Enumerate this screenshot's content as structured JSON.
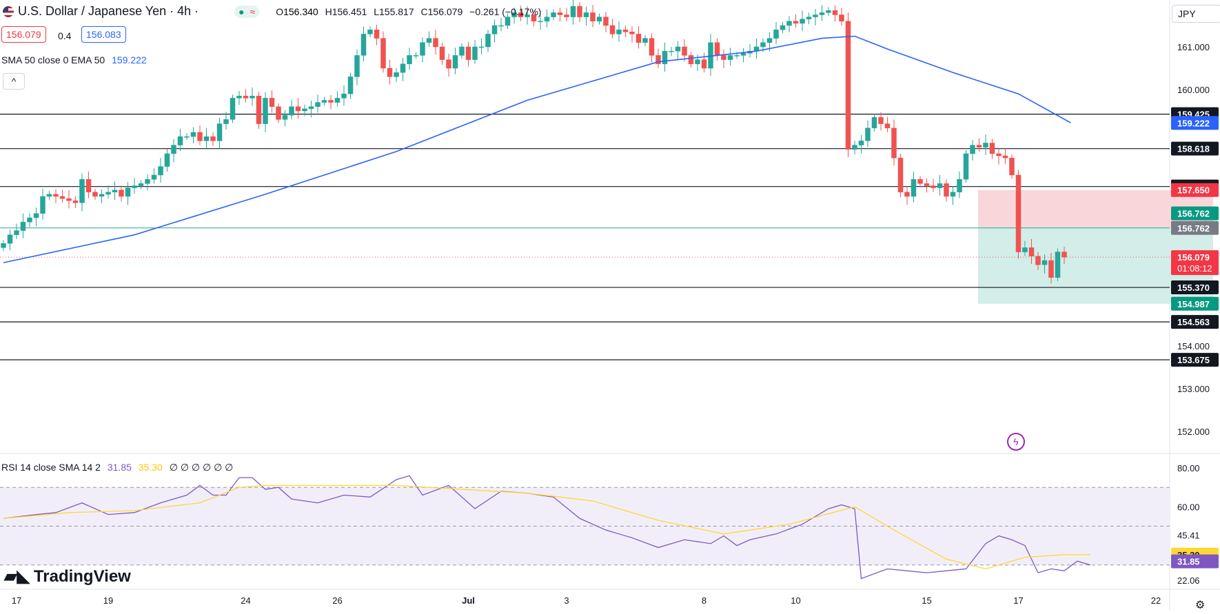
{
  "header": {
    "symbol": "U.S. Dollar / Japanese Yen · 4h ·",
    "ohlc": {
      "o_label": "O",
      "o": "156.340",
      "h_label": "H",
      "h": "156.451",
      "l_label": "L",
      "l": "155.817",
      "c_label": "C",
      "c": "156.079",
      "change": "−0.261 (−0.17%)"
    },
    "bid": "156.079",
    "spread": "0.4",
    "ask": "156.083",
    "indicator": "SMA 50 close 0 EMA 50",
    "indicator_value": "159.222",
    "currency": "JPY",
    "collapse_icon": "chevron-up-icon",
    "flag_icon": "us-flag-icon"
  },
  "rsi_header": {
    "label": "RSI 14 close SMA 14 2",
    "rsi_value": "31.85",
    "sma_value": "35.30",
    "extra": "∅ ∅ ∅ ∅ ∅ ∅"
  },
  "branding": {
    "logo_text": "TradingView"
  },
  "colors": {
    "up": "#26a69a",
    "down": "#ef5350",
    "ma": "#2962ff",
    "rsi": "#7e57c2",
    "rsi_sma": "#fdd835",
    "risk_zone": "#f9d6d9",
    "reward_zone": "#d3ede8"
  },
  "chart_data": {
    "type": "candlestick",
    "symbol": "USDJPY",
    "timeframe": "4h",
    "y_axis": {
      "ticks": [
        152.0,
        153.0,
        154.0,
        160.0,
        161.0
      ],
      "tick_labels": [
        "152.000",
        "153.000",
        "154.000",
        "160.000",
        "161.000"
      ],
      "range": [
        151.5,
        162.0
      ]
    },
    "x_axis": {
      "ticks": [
        {
          "label": "17",
          "idx": 2
        },
        {
          "label": "19",
          "idx": 16
        },
        {
          "label": "24",
          "idx": 37
        },
        {
          "label": "26",
          "idx": 51
        },
        {
          "label": "Jul",
          "idx": 71
        },
        {
          "label": "3",
          "idx": 86
        },
        {
          "label": "8",
          "idx": 107
        },
        {
          "label": "10",
          "idx": 121
        },
        {
          "label": "15",
          "idx": 141
        },
        {
          "label": "17",
          "idx": 155
        },
        {
          "label": "22",
          "idx": 176
        }
      ],
      "total_slots": 188
    },
    "candles_close": [
      156.4,
      156.6,
      156.7,
      156.9,
      157.0,
      157.1,
      157.5,
      157.55,
      157.5,
      157.45,
      157.4,
      157.35,
      157.9,
      157.6,
      157.5,
      157.55,
      157.6,
      157.65,
      157.5,
      157.7,
      157.75,
      157.8,
      157.9,
      158.0,
      158.2,
      158.5,
      158.7,
      158.9,
      158.9,
      159.0,
      158.8,
      158.9,
      158.8,
      159.2,
      159.3,
      159.8,
      159.85,
      159.8,
      159.85,
      159.2,
      159.8,
      159.6,
      159.3,
      159.4,
      159.6,
      159.5,
      159.55,
      159.6,
      159.7,
      159.75,
      159.7,
      159.8,
      159.9,
      160.3,
      160.8,
      161.3,
      161.4,
      161.2,
      160.5,
      160.3,
      160.4,
      160.6,
      160.8,
      160.8,
      161.1,
      161.2,
      161.0,
      160.7,
      160.5,
      160.8,
      161.0,
      160.7,
      161.0,
      161.0,
      161.3,
      161.5,
      161.5,
      161.7,
      161.8,
      161.7,
      161.75,
      161.6,
      161.6,
      161.7,
      161.8,
      161.75,
      161.7,
      161.95,
      161.7,
      161.8,
      161.6,
      161.7,
      161.5,
      161.3,
      161.4,
      161.35,
      161.3,
      161.1,
      161.2,
      160.8,
      160.6,
      160.9,
      160.9,
      161.0,
      160.8,
      160.6,
      160.7,
      160.5,
      161.1,
      160.8,
      160.7,
      160.8,
      160.8,
      160.85,
      160.9,
      161.0,
      161.1,
      161.2,
      161.4,
      161.5,
      161.6,
      161.55,
      161.65,
      161.7,
      161.75,
      161.8,
      161.85,
      161.75,
      161.6,
      158.6,
      158.7,
      158.8,
      159.1,
      159.35,
      159.2,
      159.1,
      158.4,
      157.6,
      157.5,
      157.9,
      157.8,
      157.75,
      157.7,
      157.8,
      157.5,
      157.6,
      157.9,
      158.5,
      158.7,
      158.65,
      158.75,
      158.5,
      158.45,
      158.4,
      158.0,
      156.2,
      156.3,
      156.1,
      155.9,
      156.0,
      155.6,
      156.2,
      156.079
    ],
    "candles_open": [
      156.3,
      156.4,
      156.6,
      156.7,
      156.9,
      157.0,
      157.1,
      157.5,
      157.55,
      157.5,
      157.45,
      157.4,
      157.35,
      157.9,
      157.6,
      157.5,
      157.55,
      157.6,
      157.65,
      157.5,
      157.7,
      157.75,
      157.8,
      157.9,
      158.0,
      158.2,
      158.5,
      158.7,
      158.9,
      158.9,
      159.0,
      158.8,
      158.9,
      158.8,
      159.2,
      159.3,
      159.8,
      159.85,
      159.8,
      159.85,
      159.2,
      159.8,
      159.6,
      159.3,
      159.4,
      159.6,
      159.5,
      159.55,
      159.6,
      159.7,
      159.75,
      159.7,
      159.8,
      159.9,
      160.3,
      160.8,
      161.3,
      161.4,
      161.2,
      160.5,
      160.3,
      160.4,
      160.6,
      160.8,
      160.8,
      161.1,
      161.2,
      161.0,
      160.7,
      160.5,
      160.8,
      161.0,
      160.7,
      161.0,
      161.0,
      161.3,
      161.5,
      161.5,
      161.7,
      161.8,
      161.7,
      161.75,
      161.6,
      161.6,
      161.7,
      161.8,
      161.75,
      161.7,
      161.95,
      161.7,
      161.8,
      161.6,
      161.7,
      161.5,
      161.3,
      161.4,
      161.35,
      161.3,
      161.1,
      161.2,
      160.8,
      160.6,
      160.9,
      160.9,
      161.0,
      160.8,
      160.6,
      160.7,
      160.5,
      161.1,
      160.8,
      160.7,
      160.8,
      160.8,
      160.85,
      160.9,
      161.0,
      161.1,
      161.2,
      161.4,
      161.5,
      161.6,
      161.55,
      161.65,
      161.7,
      161.75,
      161.8,
      161.85,
      161.75,
      161.6,
      158.6,
      158.7,
      158.8,
      159.1,
      159.35,
      159.2,
      159.1,
      158.4,
      157.6,
      157.5,
      157.9,
      157.8,
      157.75,
      157.7,
      157.8,
      157.5,
      157.6,
      157.9,
      158.5,
      158.7,
      158.65,
      158.75,
      158.5,
      158.45,
      158.4,
      158.0,
      156.2,
      156.3,
      156.1,
      155.9,
      156.0,
      155.6,
      156.2,
      156.34
    ],
    "candle_slots_start": 0,
    "ma_line": {
      "name": "EMA 50",
      "points": [
        [
          0,
          155.95
        ],
        [
          20,
          156.6
        ],
        [
          40,
          157.55
        ],
        [
          60,
          158.55
        ],
        [
          80,
          159.75
        ],
        [
          100,
          160.65
        ],
        [
          115,
          160.9
        ],
        [
          125,
          161.2
        ],
        [
          130,
          161.25
        ],
        [
          135,
          160.95
        ],
        [
          145,
          160.4
        ],
        [
          155,
          159.9
        ],
        [
          163,
          159.222
        ]
      ]
    },
    "horizontal_levels": [
      {
        "value": 159.425,
        "label": "159.425"
      },
      {
        "value": 158.618,
        "label": "158.618"
      },
      {
        "value": 157.731,
        "label": "157.731"
      },
      {
        "value": 155.37,
        "label": "155.370"
      },
      {
        "value": 154.563,
        "label": "154.563"
      },
      {
        "value": 153.675,
        "label": "153.675"
      }
    ],
    "position_tool": {
      "entry": 156.762,
      "stop": 157.65,
      "target": 154.987,
      "entry_label": "156.762",
      "stop_label": "157.650",
      "target_label": "154.987",
      "start_idx": 150,
      "end_idx": 184
    },
    "current_price": {
      "value": 156.079,
      "label": "156.079",
      "countdown": "01:08:12"
    },
    "ma_axis_label": "159.222",
    "entry_axis_label_2": "156.762",
    "rsi": {
      "y_ticks": [
        80.0,
        60.0
      ],
      "tick_labels": [
        "80.00",
        "60.00"
      ],
      "upper_band": 70,
      "lower_band": 30,
      "mid_band": 50,
      "range": [
        20,
        85
      ],
      "rsi_axis_label_1": "45.41",
      "rsi_axis_label_2": "22.06",
      "rsi_points": [
        [
          0,
          54
        ],
        [
          5,
          56
        ],
        [
          8,
          57
        ],
        [
          12,
          62
        ],
        [
          16,
          56
        ],
        [
          20,
          57
        ],
        [
          24,
          62
        ],
        [
          28,
          66
        ],
        [
          30,
          71
        ],
        [
          32,
          66
        ],
        [
          34,
          66
        ],
        [
          36,
          75
        ],
        [
          38,
          75
        ],
        [
          40,
          69
        ],
        [
          42,
          70
        ],
        [
          44,
          64
        ],
        [
          48,
          62
        ],
        [
          52,
          66
        ],
        [
          56,
          65
        ],
        [
          60,
          74
        ],
        [
          62,
          76
        ],
        [
          64,
          66
        ],
        [
          68,
          71
        ],
        [
          72,
          59
        ],
        [
          76,
          68
        ],
        [
          80,
          67
        ],
        [
          84,
          65
        ],
        [
          88,
          54
        ],
        [
          92,
          48
        ],
        [
          96,
          44
        ],
        [
          100,
          39
        ],
        [
          104,
          43
        ],
        [
          108,
          41
        ],
        [
          110,
          45
        ],
        [
          112,
          40
        ],
        [
          114,
          43
        ],
        [
          118,
          46
        ],
        [
          122,
          51
        ],
        [
          126,
          59
        ],
        [
          128,
          61
        ],
        [
          130,
          59
        ],
        [
          131,
          23
        ],
        [
          135,
          28
        ],
        [
          138,
          27
        ],
        [
          141,
          26
        ],
        [
          144,
          27
        ],
        [
          147,
          28
        ],
        [
          150,
          41
        ],
        [
          152,
          45
        ],
        [
          154,
          43
        ],
        [
          156,
          40
        ],
        [
          158,
          26
        ],
        [
          160,
          28
        ],
        [
          162,
          27
        ],
        [
          164,
          32
        ],
        [
          166,
          30
        ]
      ],
      "sma_points": [
        [
          0,
          54
        ],
        [
          10,
          57
        ],
        [
          20,
          58
        ],
        [
          30,
          62
        ],
        [
          36,
          70
        ],
        [
          40,
          71
        ],
        [
          50,
          71
        ],
        [
          60,
          71
        ],
        [
          70,
          69
        ],
        [
          80,
          67
        ],
        [
          90,
          63
        ],
        [
          100,
          53
        ],
        [
          110,
          46
        ],
        [
          120,
          51
        ],
        [
          130,
          60
        ],
        [
          136,
          48
        ],
        [
          144,
          33
        ],
        [
          150,
          28
        ],
        [
          156,
          34
        ],
        [
          162,
          35.3
        ],
        [
          166,
          35.3
        ]
      ]
    }
  }
}
